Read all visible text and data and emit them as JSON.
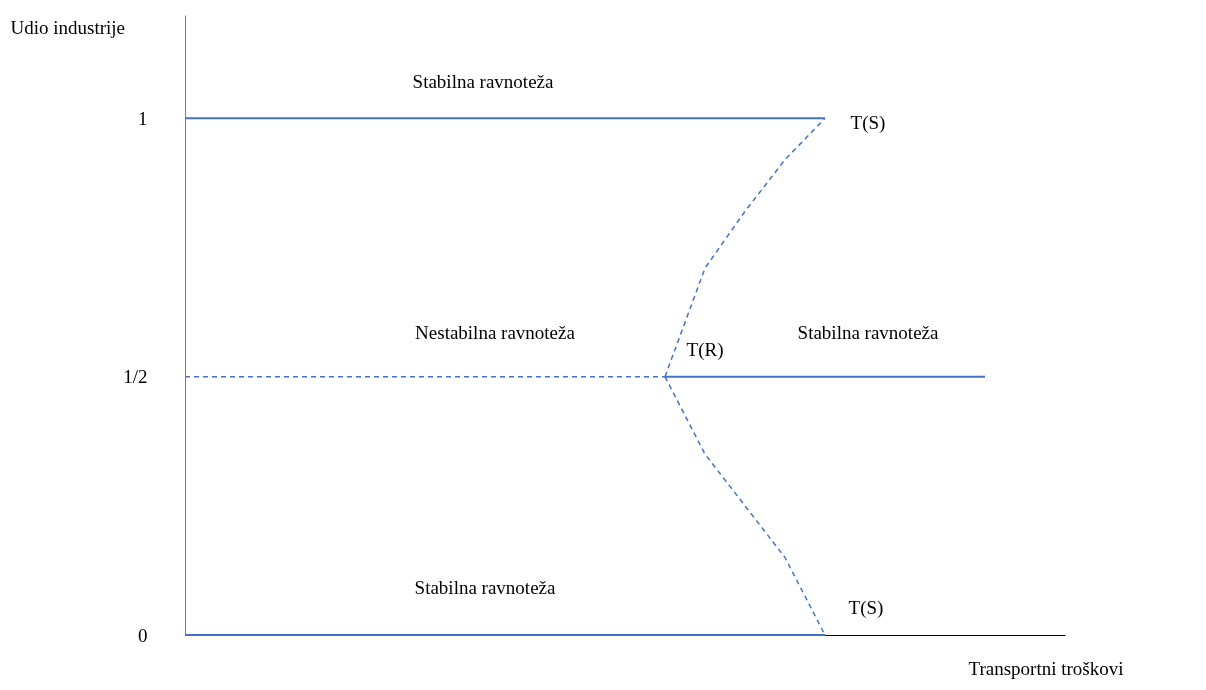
{
  "chart_data": {
    "type": "line",
    "xlabel": "Transportni troškovi",
    "ylabel": "Udio industrije",
    "categories": [
      null,
      null,
      null,
      null,
      null,
      null,
      null,
      null,
      null,
      null,
      null,
      null,
      null,
      null,
      null,
      null,
      null,
      null,
      null,
      null,
      null,
      null,
      null
    ],
    "ylim": [
      0,
      1.2
    ],
    "yticks": [
      0,
      {
        "value": 0.5,
        "label": "1/2"
      },
      1
    ],
    "tick_labels": "y",
    "grid": false,
    "marker": "none",
    "series": [
      {
        "color": "#4472c4",
        "line_style": "solid",
        "values": [
          1,
          1,
          1,
          1,
          1,
          1,
          1,
          1,
          1,
          1,
          1,
          1,
          1,
          1,
          1,
          1,
          1,
          null,
          null,
          null,
          null,
          null,
          null
        ]
      },
      {
        "color": "#4472c4",
        "line_style": "solid",
        "values": [
          0,
          0,
          0,
          0,
          0,
          0,
          0,
          0,
          0,
          0,
          0,
          0,
          0,
          0,
          0,
          0,
          0,
          null,
          null,
          null,
          null,
          null,
          null
        ]
      },
      {
        "color": "#4472c4",
        "line_style": "dashed",
        "values": [
          0.5,
          0.5,
          0.5,
          0.5,
          0.5,
          0.5,
          0.5,
          0.5,
          0.5,
          0.5,
          0.5,
          0.5,
          0.5,
          null,
          null,
          null,
          null,
          null,
          null,
          null,
          null,
          null,
          null
        ]
      },
      {
        "color": "#4472c4",
        "line_style": "solid",
        "values": [
          null,
          null,
          null,
          null,
          null,
          null,
          null,
          null,
          null,
          null,
          null,
          null,
          0.5,
          0.5,
          0.5,
          0.5,
          0.5,
          0.5,
          0.5,
          0.5,
          0.5,
          null,
          null
        ]
      },
      {
        "color": "#4472c4",
        "line_style": "dashed",
        "values": [
          null,
          null,
          null,
          null,
          null,
          null,
          null,
          null,
          null,
          null,
          null,
          null,
          0.5,
          0.71,
          0.82,
          0.92,
          1,
          null,
          null,
          null,
          null,
          null,
          null
        ]
      },
      {
        "color": "#4472c4",
        "line_style": "dashed",
        "values": [
          null,
          null,
          null,
          null,
          null,
          null,
          null,
          null,
          null,
          null,
          null,
          null,
          0.5,
          0.35,
          0.25,
          0.15,
          0,
          null,
          null,
          null,
          null,
          null,
          null
        ]
      }
    ],
    "annotations": [
      "Stabilna ravnoteža",
      "T(S)",
      "Nestabilna ravnoteža",
      "T(R)",
      "Stabilna ravnoteža",
      "Stabilna ravnoteža",
      "T(S)"
    ]
  }
}
